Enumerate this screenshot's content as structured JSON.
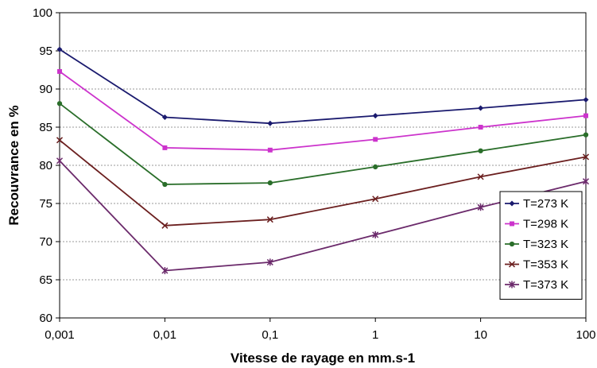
{
  "chart_data": {
    "type": "line",
    "xscale": "log",
    "x": [
      0.001,
      0.01,
      0.1,
      1,
      10,
      100
    ],
    "x_tick_labels": [
      "0,001",
      "0,01",
      "0,1",
      "1",
      "10",
      "100"
    ],
    "ylim": [
      60,
      100
    ],
    "y_ticks": [
      60,
      65,
      70,
      75,
      80,
      85,
      90,
      95,
      100
    ],
    "y_tick_labels": [
      "60",
      "65",
      "70",
      "75",
      "80",
      "85",
      "90",
      "95",
      "100"
    ],
    "xlabel": "Vitesse de rayage en mm.s-1",
    "ylabel": "Recouvrance en %",
    "grid": "horizontal",
    "legend_position": "right",
    "series": [
      {
        "name": "T=273 K",
        "color": "#1a1a6e",
        "marker": "diamond",
        "values": [
          95.2,
          86.3,
          85.5,
          86.5,
          87.5,
          88.6
        ]
      },
      {
        "name": "T=298 K",
        "color": "#cc33cc",
        "marker": "square",
        "values": [
          92.3,
          82.3,
          82.0,
          83.4,
          85.0,
          86.5
        ]
      },
      {
        "name": "T=323 K",
        "color": "#2a6e2a",
        "marker": "circle",
        "values": [
          88.1,
          77.5,
          77.7,
          79.8,
          81.9,
          84.0
        ]
      },
      {
        "name": "T=353 K",
        "color": "#6b1f1f",
        "marker": "x",
        "values": [
          83.3,
          72.1,
          72.9,
          75.6,
          78.5,
          81.1
        ]
      },
      {
        "name": "T=373 K",
        "color": "#6b2a6b",
        "marker": "star",
        "values": [
          80.6,
          66.2,
          67.3,
          70.9,
          74.5,
          77.9
        ]
      }
    ]
  }
}
